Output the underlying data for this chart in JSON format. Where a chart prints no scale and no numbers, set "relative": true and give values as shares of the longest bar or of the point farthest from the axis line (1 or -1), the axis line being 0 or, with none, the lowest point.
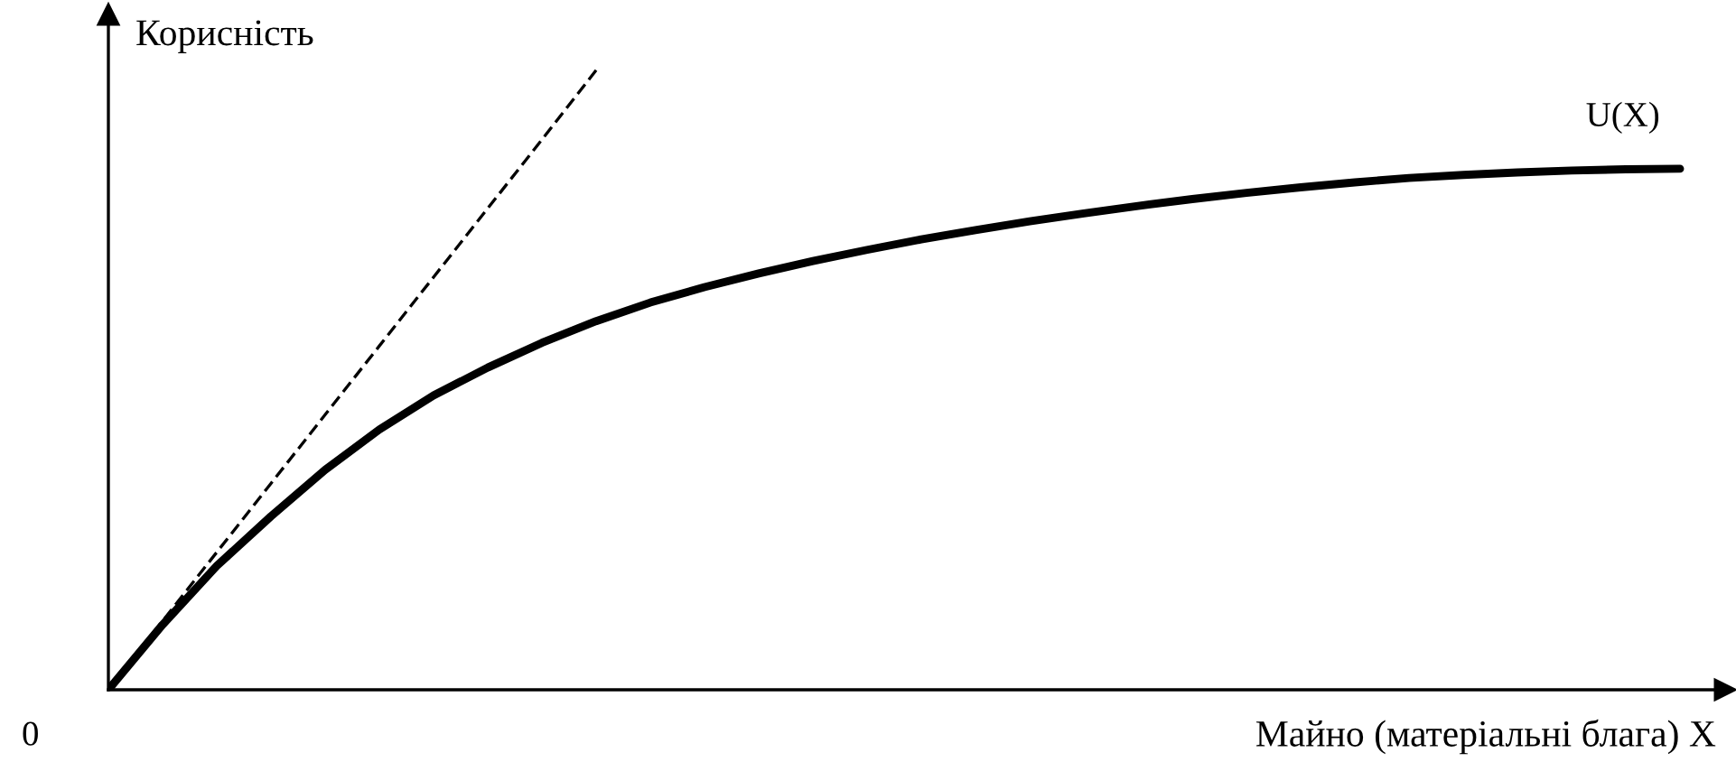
{
  "chart_data": {
    "type": "line",
    "relative": true,
    "xlabel": "Майно (матеріальні блага) X",
    "ylabel": "Корисність",
    "annotations": [
      "0"
    ],
    "grid": false,
    "legend": false,
    "categories": [
      null,
      null,
      null,
      null,
      null,
      null,
      null,
      null,
      null,
      null,
      null,
      null,
      null,
      null,
      null,
      null,
      null,
      null,
      null,
      null,
      null,
      null,
      null,
      null,
      null,
      null,
      null,
      null,
      null,
      null
    ],
    "series": [
      {
        "name": "U(X)",
        "color": "#000000",
        "line_style": "solid",
        "values": [
          0,
          0.105,
          0.2,
          0.28,
          0.355,
          0.42,
          0.475,
          0.52,
          0.56,
          0.595,
          0.625,
          0.65,
          0.672,
          0.692,
          0.71,
          0.727,
          0.742,
          0.756,
          0.769,
          0.781,
          0.792,
          0.802,
          0.811,
          0.819,
          0.826,
          0.831,
          0.835,
          0.838,
          0.84,
          0.841
        ]
      },
      {
        "color": "#000000",
        "line_style": "dashed",
        "values": [
          0,
          0.111,
          0.222,
          0.333,
          0.444,
          0.555,
          0.666,
          0.777,
          0.888,
          1.0,
          null,
          null,
          null,
          null,
          null,
          null,
          null,
          null,
          null,
          null,
          null,
          null,
          null,
          null,
          null,
          null,
          null,
          null,
          null,
          null
        ]
      }
    ]
  }
}
